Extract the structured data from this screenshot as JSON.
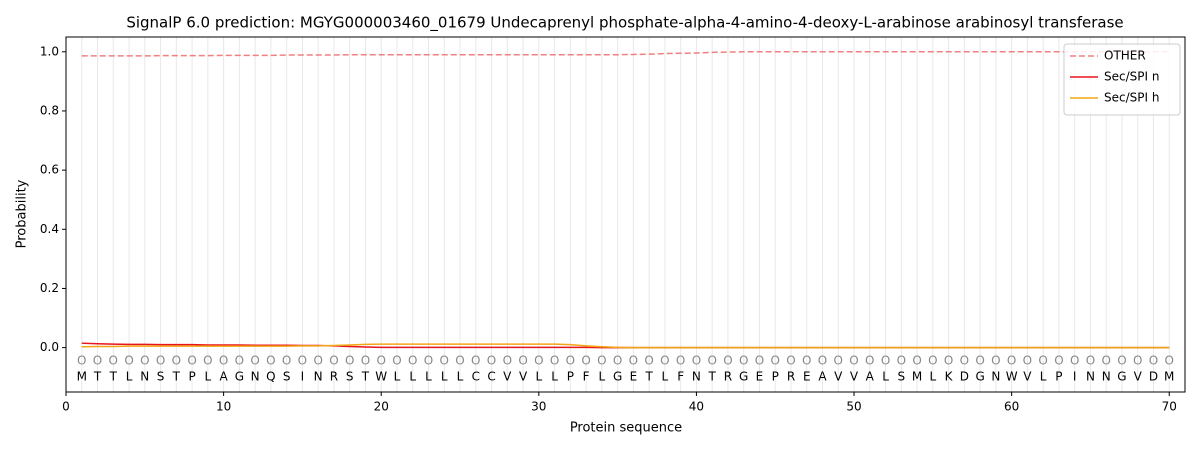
{
  "chart_data": {
    "type": "line",
    "title": "SignalP 6.0 prediction: MGYG000003460_01679 Undecaprenyl phosphate-alpha-4-amino-4-deoxy-L-arabinose arabinosyl transferase",
    "x_label": "Protein sequence",
    "y_label": "Probability",
    "x": [
      1,
      2,
      3,
      4,
      5,
      6,
      7,
      8,
      9,
      10,
      11,
      12,
      13,
      14,
      15,
      16,
      17,
      18,
      19,
      20,
      21,
      22,
      23,
      24,
      25,
      26,
      27,
      28,
      29,
      30,
      31,
      32,
      33,
      34,
      35,
      36,
      37,
      38,
      39,
      40,
      41,
      42,
      43,
      44,
      45,
      46,
      47,
      48,
      49,
      50,
      51,
      52,
      53,
      54,
      55,
      56,
      57,
      58,
      59,
      60,
      61,
      62,
      63,
      64,
      65,
      66,
      67,
      68,
      69,
      70
    ],
    "sequence": [
      "M",
      "T",
      "T",
      "L",
      "N",
      "S",
      "T",
      "P",
      "L",
      "A",
      "G",
      "N",
      "Q",
      "S",
      "I",
      "N",
      "R",
      "S",
      "T",
      "W",
      "L",
      "L",
      "L",
      "L",
      "L",
      "C",
      "C",
      "V",
      "V",
      "L",
      "L",
      "P",
      "F",
      "L",
      "G",
      "E",
      "T",
      "L",
      "F",
      "N",
      "T",
      "R",
      "G",
      "E",
      "P",
      "R",
      "E",
      "A",
      "V",
      "V",
      "A",
      "L",
      "S",
      "M",
      "L",
      "K",
      "D",
      "G",
      "N",
      "W",
      "V",
      "L",
      "P",
      "I",
      "N",
      "N",
      "G",
      "V",
      "D",
      "M"
    ],
    "position_labels": [
      "O",
      "O",
      "O",
      "O",
      "O",
      "O",
      "O",
      "O",
      "O",
      "O",
      "O",
      "O",
      "O",
      "O",
      "O",
      "O",
      "O",
      "O",
      "O",
      "O",
      "O",
      "O",
      "O",
      "O",
      "O",
      "O",
      "O",
      "O",
      "O",
      "O",
      "O",
      "O",
      "O",
      "O",
      "O",
      "O",
      "O",
      "O",
      "O",
      "O",
      "O",
      "O",
      "O",
      "O",
      "O",
      "O",
      "O",
      "O",
      "O",
      "O",
      "O",
      "O",
      "O",
      "O",
      "O",
      "O",
      "O",
      "O",
      "O",
      "O",
      "O",
      "O",
      "O",
      "O",
      "O",
      "O",
      "O",
      "O",
      "O",
      "O"
    ],
    "series": [
      {
        "name": "OTHER",
        "color": "#f08080",
        "linestyle": "dashed",
        "values": [
          0.986,
          0.986,
          0.986,
          0.986,
          0.986,
          0.987,
          0.987,
          0.987,
          0.987,
          0.988,
          0.988,
          0.988,
          0.988,
          0.989,
          0.989,
          0.989,
          0.989,
          0.99,
          0.99,
          0.99,
          0.99,
          0.99,
          0.99,
          0.99,
          0.99,
          0.99,
          0.99,
          0.99,
          0.99,
          0.99,
          0.99,
          0.99,
          0.99,
          0.99,
          0.99,
          0.991,
          0.992,
          0.994,
          0.995,
          0.996,
          0.998,
          0.999,
          1.0,
          1.0,
          1.0,
          1.0,
          1.0,
          1.0,
          1.0,
          1.0,
          1.0,
          1.0,
          1.0,
          1.0,
          1.0,
          1.0,
          1.0,
          1.0,
          1.0,
          1.0,
          1.0,
          1.0,
          1.0,
          1.0,
          1.0,
          1.0,
          1.0,
          1.0,
          1.0,
          1.0
        ]
      },
      {
        "name": "Sec/SPI n",
        "color": "#e8141c",
        "linestyle": "solid",
        "values": [
          0.015,
          0.013,
          0.012,
          0.011,
          0.011,
          0.01,
          0.01,
          0.01,
          0.009,
          0.009,
          0.009,
          0.008,
          0.008,
          0.008,
          0.007,
          0.007,
          0.006,
          0.004,
          0.002,
          0.001,
          0.001,
          0.001,
          0.001,
          0.001,
          0.001,
          0.001,
          0.001,
          0.001,
          0.001,
          0.001,
          0.001,
          0.001,
          0.001,
          0,
          0,
          0,
          0,
          0,
          0,
          0,
          0,
          0,
          0,
          0,
          0,
          0,
          0,
          0,
          0,
          0,
          0,
          0,
          0,
          0,
          0,
          0,
          0,
          0,
          0,
          0,
          0,
          0,
          0,
          0,
          0,
          0,
          0,
          0,
          0,
          0
        ]
      },
      {
        "name": "Sec/SPI h",
        "color": "#f2a516",
        "linestyle": "solid",
        "values": [
          0.003,
          0.004,
          0.004,
          0.005,
          0.005,
          0.005,
          0.005,
          0.005,
          0.005,
          0.005,
          0.005,
          0.005,
          0.005,
          0.005,
          0.006,
          0.006,
          0.007,
          0.009,
          0.011,
          0.012,
          0.012,
          0.012,
          0.012,
          0.012,
          0.012,
          0.012,
          0.012,
          0.012,
          0.012,
          0.012,
          0.012,
          0.01,
          0.006,
          0.003,
          0.001,
          0,
          0,
          0,
          0,
          0,
          0,
          0,
          0,
          0,
          0,
          0,
          0,
          0,
          0,
          0,
          0,
          0,
          0,
          0,
          0,
          0,
          0,
          0,
          0,
          0,
          0,
          0,
          0,
          0,
          0,
          0,
          0,
          0,
          0,
          0
        ]
      }
    ],
    "xlim": [
      0,
      71
    ],
    "ylim": [
      -0.15,
      1.05
    ],
    "xticks": [
      0,
      10,
      20,
      30,
      40,
      50,
      60,
      70
    ],
    "yticks": [
      {
        "value": 0,
        "label": "0.0"
      },
      {
        "value": 0.2,
        "label": "0.2"
      },
      {
        "value": 0.4,
        "label": "0.4"
      },
      {
        "value": 0.6,
        "label": "0.6"
      },
      {
        "value": 0.8,
        "label": "0.8"
      },
      {
        "value": 1,
        "label": "1.0"
      }
    ],
    "legend": "upper right"
  }
}
